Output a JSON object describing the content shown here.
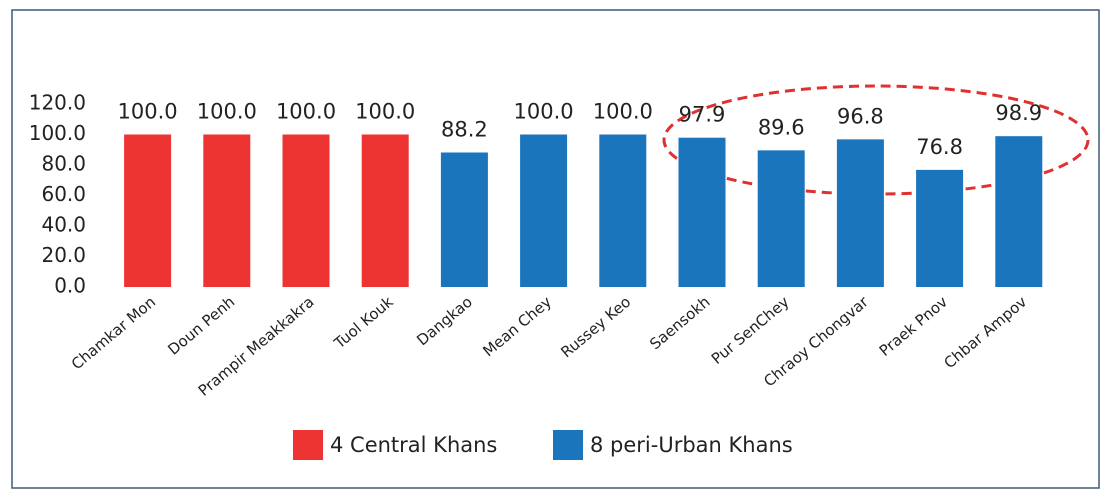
{
  "chart_data": {
    "type": "bar",
    "categories": [
      "Chamkar Mon",
      "Doun Penh",
      "Prampir Meakkakra",
      "Tuol Kouk",
      "Dangkao",
      "Mean Chey",
      "Russey Keo",
      "Saensokh",
      "Pur SenChey",
      "Chraoy Chongvar",
      "Praek Pnov",
      "Chbar Ampov"
    ],
    "values": [
      100.0,
      100.0,
      100.0,
      100.0,
      88.2,
      100.0,
      100.0,
      97.9,
      89.6,
      96.8,
      76.8,
      98.9
    ],
    "value_labels": [
      "100.0",
      "100.0",
      "100.0",
      "100.0",
      "88.2",
      "100.0",
      "100.0",
      "97.9",
      "89.6",
      "96.8",
      "76.8",
      "98.9"
    ],
    "colors": [
      "#ee3432",
      "#ee3432",
      "#ee3432",
      "#ee3432",
      "#1b75bc",
      "#1b75bc",
      "#1b75bc",
      "#1b75bc",
      "#1b75bc",
      "#1b75bc",
      "#1b75bc",
      "#1b75bc"
    ],
    "legend": [
      {
        "name": "4 Central Khans",
        "color": "#ee3432"
      },
      {
        "name": "8 peri-Urban Khans",
        "color": "#1b75bc"
      }
    ],
    "ylim": [
      0,
      120
    ],
    "yticks": [
      {
        "value": 0,
        "label": "0.0"
      },
      {
        "value": 20,
        "label": "20.0"
      },
      {
        "value": 40,
        "label": "40.0"
      },
      {
        "value": 60,
        "label": "60.0"
      },
      {
        "value": 80,
        "label": "80.0"
      },
      {
        "value": 100,
        "label": "100.0"
      },
      {
        "value": 120,
        "label": "120.0"
      }
    ],
    "grid": false
  }
}
